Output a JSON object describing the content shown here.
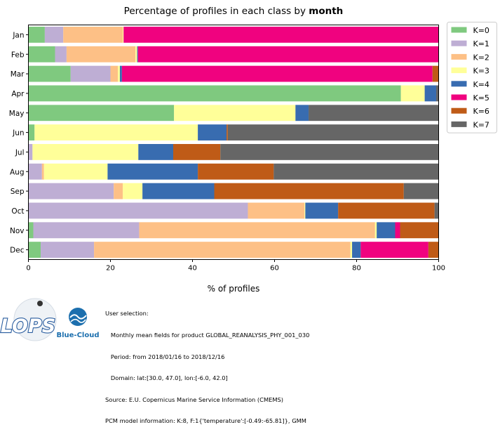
{
  "chart_data": {
    "type": "bar",
    "orientation": "horizontal",
    "stacked": true,
    "title_prefix": "Percentage of profiles in each class by ",
    "title_bold": "month",
    "xlabel": "% of profiles",
    "ylabel": "",
    "xlim": [
      0,
      100
    ],
    "xticks": [
      0,
      20,
      40,
      60,
      80,
      100
    ],
    "grid": false,
    "legend_position": "outside-top-right",
    "categories": [
      "Jan",
      "Feb",
      "Mar",
      "Apr",
      "May",
      "Jun",
      "Jul",
      "Aug",
      "Sep",
      "Oct",
      "Nov",
      "Dec"
    ],
    "series": [
      {
        "name": "K=0",
        "color": "#7fc97f",
        "values": [
          4.0,
          6.5,
          10.3,
          90.8,
          35.5,
          1.5,
          0.0,
          0.0,
          0.0,
          0.0,
          1.2,
          3.0
        ]
      },
      {
        "name": "K=1",
        "color": "#beaed4",
        "values": [
          4.5,
          2.8,
          9.7,
          0.0,
          0.0,
          0.0,
          1.0,
          3.3,
          20.8,
          53.5,
          25.8,
          13.0
        ]
      },
      {
        "name": "K=2",
        "color": "#fdc086",
        "values": [
          14.5,
          16.8,
          1.8,
          0.0,
          0.0,
          0.0,
          0.0,
          0.5,
          2.2,
          13.8,
          57.5,
          62.5
        ]
      },
      {
        "name": "K=3",
        "color": "#ffff99",
        "values": [
          0.2,
          0.4,
          0.5,
          5.8,
          29.6,
          39.8,
          25.8,
          15.5,
          4.8,
          0.2,
          0.4,
          0.4
        ]
      },
      {
        "name": "K=4",
        "color": "#386cb0",
        "values": [
          0.0,
          0.2,
          0.5,
          2.8,
          3.2,
          7.0,
          8.5,
          22.0,
          17.5,
          8.0,
          4.5,
          2.1
        ]
      },
      {
        "name": "K=5",
        "color": "#f0027f",
        "values": [
          76.8,
          73.3,
          75.7,
          0.0,
          0.0,
          0.0,
          0.0,
          0.0,
          0.0,
          0.0,
          1.2,
          16.5
        ]
      },
      {
        "name": "K=6",
        "color": "#bf5b17",
        "values": [
          0.0,
          0.0,
          1.5,
          0.0,
          0.0,
          0.3,
          11.5,
          18.5,
          46.2,
          23.5,
          9.4,
          2.5
        ]
      },
      {
        "name": "K=7",
        "color": "#666666",
        "values": [
          0.0,
          0.0,
          0.0,
          0.6,
          31.7,
          51.4,
          53.2,
          40.2,
          8.5,
          1.0,
          0.0,
          0.0
        ]
      }
    ]
  },
  "logos": {
    "lops_text": "LOPS",
    "bluecloud_text": "Blue-Cloud"
  },
  "footer": {
    "lines": [
      "User selection:",
      "   Monthly mean fields for product GLOBAL_REANALYSIS_PHY_001_030",
      "   Period: from 2018/01/16 to 2018/12/16",
      "   Domain: lat:[30.0, 47.0], lon:[-6.0, 42.0]",
      "Source: E.U. Copernicus Marine Service Information (CMEMS)",
      "PCM model information: K:8, F:1{'temperature':[-0.49:-65.81]}, GMM"
    ]
  }
}
